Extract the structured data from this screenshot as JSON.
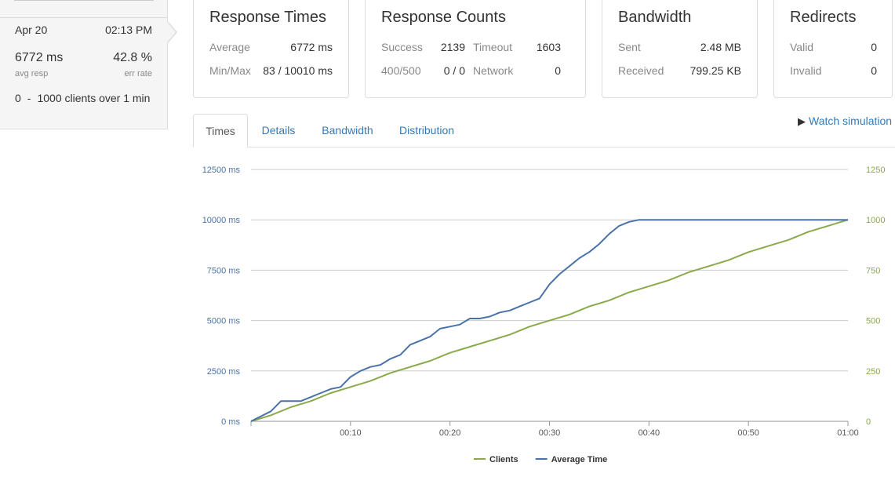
{
  "summary": {
    "date": "Apr 20",
    "time": "02:13 PM",
    "avg_resp_value": "6772 ms",
    "avg_resp_label": "avg resp",
    "err_rate_value": "42.8 %",
    "err_rate_label": "err rate",
    "clients_from": "0",
    "clients_sep": "-",
    "clients_to": "1000",
    "clients_suffix": "clients over 1 min"
  },
  "cards": {
    "response_times": {
      "title": "Response Times",
      "average_label": "Average",
      "average_value": "6772 ms",
      "minmax_label": "Min/Max",
      "minmax_value": "83 / 10010 ms"
    },
    "response_counts": {
      "title": "Response Counts",
      "success_label": "Success",
      "success_value": "2139",
      "timeout_label": "Timeout",
      "timeout_value": "1603",
      "http_label": "400/500",
      "http_value": "0 / 0",
      "network_label": "Network",
      "network_value": "0"
    },
    "bandwidth": {
      "title": "Bandwidth",
      "sent_label": "Sent",
      "sent_value": "2.48 MB",
      "received_label": "Received",
      "received_value": "799.25 KB"
    },
    "redirects": {
      "title": "Redirects",
      "valid_label": "Valid",
      "valid_value": "0",
      "invalid_label": "Invalid",
      "invalid_value": "0"
    }
  },
  "tabs": [
    {
      "label": "Times",
      "active": true
    },
    {
      "label": "Details",
      "active": false
    },
    {
      "label": "Bandwidth",
      "active": false
    },
    {
      "label": "Distribution",
      "active": false
    }
  ],
  "watch_simulation": {
    "label": "Watch simulation",
    "icon": "play-icon"
  },
  "colors": {
    "avg_time": "#4a72a8",
    "clients": "#8aa94a",
    "left_axis": "#4a72a8",
    "right_axis": "#8aa94a",
    "grid": "#cccccc",
    "link": "#337ab7"
  },
  "chart_data": {
    "type": "line",
    "x_ticks": [
      "00:10",
      "00:20",
      "00:30",
      "00:40",
      "00:50",
      "01:00"
    ],
    "x_range_seconds": [
      0,
      60
    ],
    "left_axis": {
      "ticks": [
        "0 ms",
        "2500 ms",
        "5000 ms",
        "7500 ms",
        "10000 ms",
        "12500 ms"
      ],
      "range": [
        0,
        12500
      ],
      "unit": "ms"
    },
    "right_axis": {
      "ticks": [
        "0",
        "250",
        "500",
        "750",
        "1000",
        "1250"
      ],
      "range": [
        0,
        1250
      ]
    },
    "grid": true,
    "legend_position": "bottom",
    "series": [
      {
        "name": "Clients",
        "axis": "right",
        "color": "#8aa94a",
        "x": [
          0,
          2,
          4,
          6,
          8,
          10,
          12,
          14,
          16,
          18,
          20,
          22,
          24,
          26,
          28,
          30,
          32,
          34,
          36,
          38,
          40,
          42,
          44,
          46,
          48,
          50,
          52,
          54,
          56,
          58,
          60
        ],
        "values": [
          0,
          30,
          70,
          100,
          140,
          170,
          200,
          240,
          270,
          300,
          340,
          370,
          400,
          430,
          470,
          500,
          530,
          570,
          600,
          640,
          670,
          700,
          740,
          770,
          800,
          840,
          870,
          900,
          940,
          970,
          1000
        ]
      },
      {
        "name": "Average Time",
        "axis": "left",
        "color": "#4a72a8",
        "x": [
          0,
          2,
          3,
          4,
          5,
          6,
          7,
          8,
          9,
          10,
          11,
          12,
          13,
          14,
          15,
          16,
          17,
          18,
          19,
          20,
          21,
          22,
          23,
          24,
          25,
          26,
          27,
          28,
          29,
          30,
          31,
          32,
          33,
          34,
          35,
          36,
          37,
          38,
          39,
          40,
          45,
          50,
          55,
          60
        ],
        "values": [
          0,
          500,
          1000,
          1000,
          1000,
          1200,
          1400,
          1600,
          1700,
          2200,
          2500,
          2700,
          2800,
          3100,
          3300,
          3800,
          4000,
          4200,
          4600,
          4700,
          4800,
          5100,
          5100,
          5200,
          5400,
          5500,
          5700,
          5900,
          6100,
          6800,
          7300,
          7700,
          8100,
          8400,
          8800,
          9300,
          9700,
          9900,
          10000,
          10000,
          10000,
          10000,
          10000,
          10000
        ]
      }
    ]
  }
}
